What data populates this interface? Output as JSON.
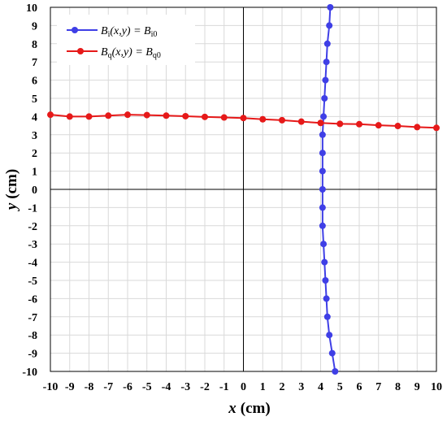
{
  "chart_data": {
    "type": "line",
    "xlabel": {
      "var": "x",
      "unit": "(cm)"
    },
    "ylabel": {
      "var": "y",
      "unit": "(cm)"
    },
    "xlim": [
      -10,
      10
    ],
    "ylim": [
      -10,
      10
    ],
    "x_ticks": [
      -10,
      -9,
      -8,
      -7,
      -6,
      -5,
      -4,
      -3,
      -2,
      -1,
      0,
      1,
      2,
      3,
      4,
      5,
      6,
      7,
      8,
      9,
      10
    ],
    "y_ticks": [
      -10,
      -9,
      -8,
      -7,
      -6,
      -5,
      -4,
      -3,
      -2,
      -1,
      0,
      1,
      2,
      3,
      4,
      5,
      6,
      7,
      8,
      9,
      10
    ],
    "grid": true,
    "legend_position": "top-left",
    "series": [
      {
        "name_parts": {
          "sym": "B",
          "sub": "i",
          "mid": "(x,y) = ",
          "rsym": "B",
          "rsub": "i0"
        },
        "color": "#3f3fe6",
        "points": [
          [
            4.75,
            -10
          ],
          [
            4.6,
            -9
          ],
          [
            4.45,
            -8
          ],
          [
            4.35,
            -7
          ],
          [
            4.3,
            -6
          ],
          [
            4.25,
            -5
          ],
          [
            4.2,
            -4
          ],
          [
            4.15,
            -3
          ],
          [
            4.1,
            -2
          ],
          [
            4.1,
            -1
          ],
          [
            4.1,
            0
          ],
          [
            4.1,
            1
          ],
          [
            4.1,
            2
          ],
          [
            4.1,
            3
          ],
          [
            4.15,
            4
          ],
          [
            4.2,
            5
          ],
          [
            4.25,
            6
          ],
          [
            4.3,
            7
          ],
          [
            4.35,
            8
          ],
          [
            4.45,
            9
          ],
          [
            4.5,
            10
          ]
        ]
      },
      {
        "name_parts": {
          "sym": "B",
          "sub": "q",
          "mid": "(x,y) = ",
          "rsym": "B",
          "rsub": "q0"
        },
        "color": "#e61919",
        "points": [
          [
            -10,
            4.1
          ],
          [
            -9,
            4.0
          ],
          [
            -8,
            4.0
          ],
          [
            -7,
            4.05
          ],
          [
            -6,
            4.1
          ],
          [
            -5,
            4.08
          ],
          [
            -4,
            4.05
          ],
          [
            -3,
            4.02
          ],
          [
            -2,
            3.98
          ],
          [
            -1,
            3.95
          ],
          [
            0,
            3.92
          ],
          [
            1,
            3.85
          ],
          [
            2,
            3.8
          ],
          [
            3,
            3.72
          ],
          [
            4,
            3.65
          ],
          [
            5,
            3.6
          ],
          [
            6,
            3.58
          ],
          [
            7,
            3.52
          ],
          [
            8,
            3.48
          ],
          [
            9,
            3.42
          ],
          [
            10,
            3.38
          ]
        ]
      }
    ]
  }
}
